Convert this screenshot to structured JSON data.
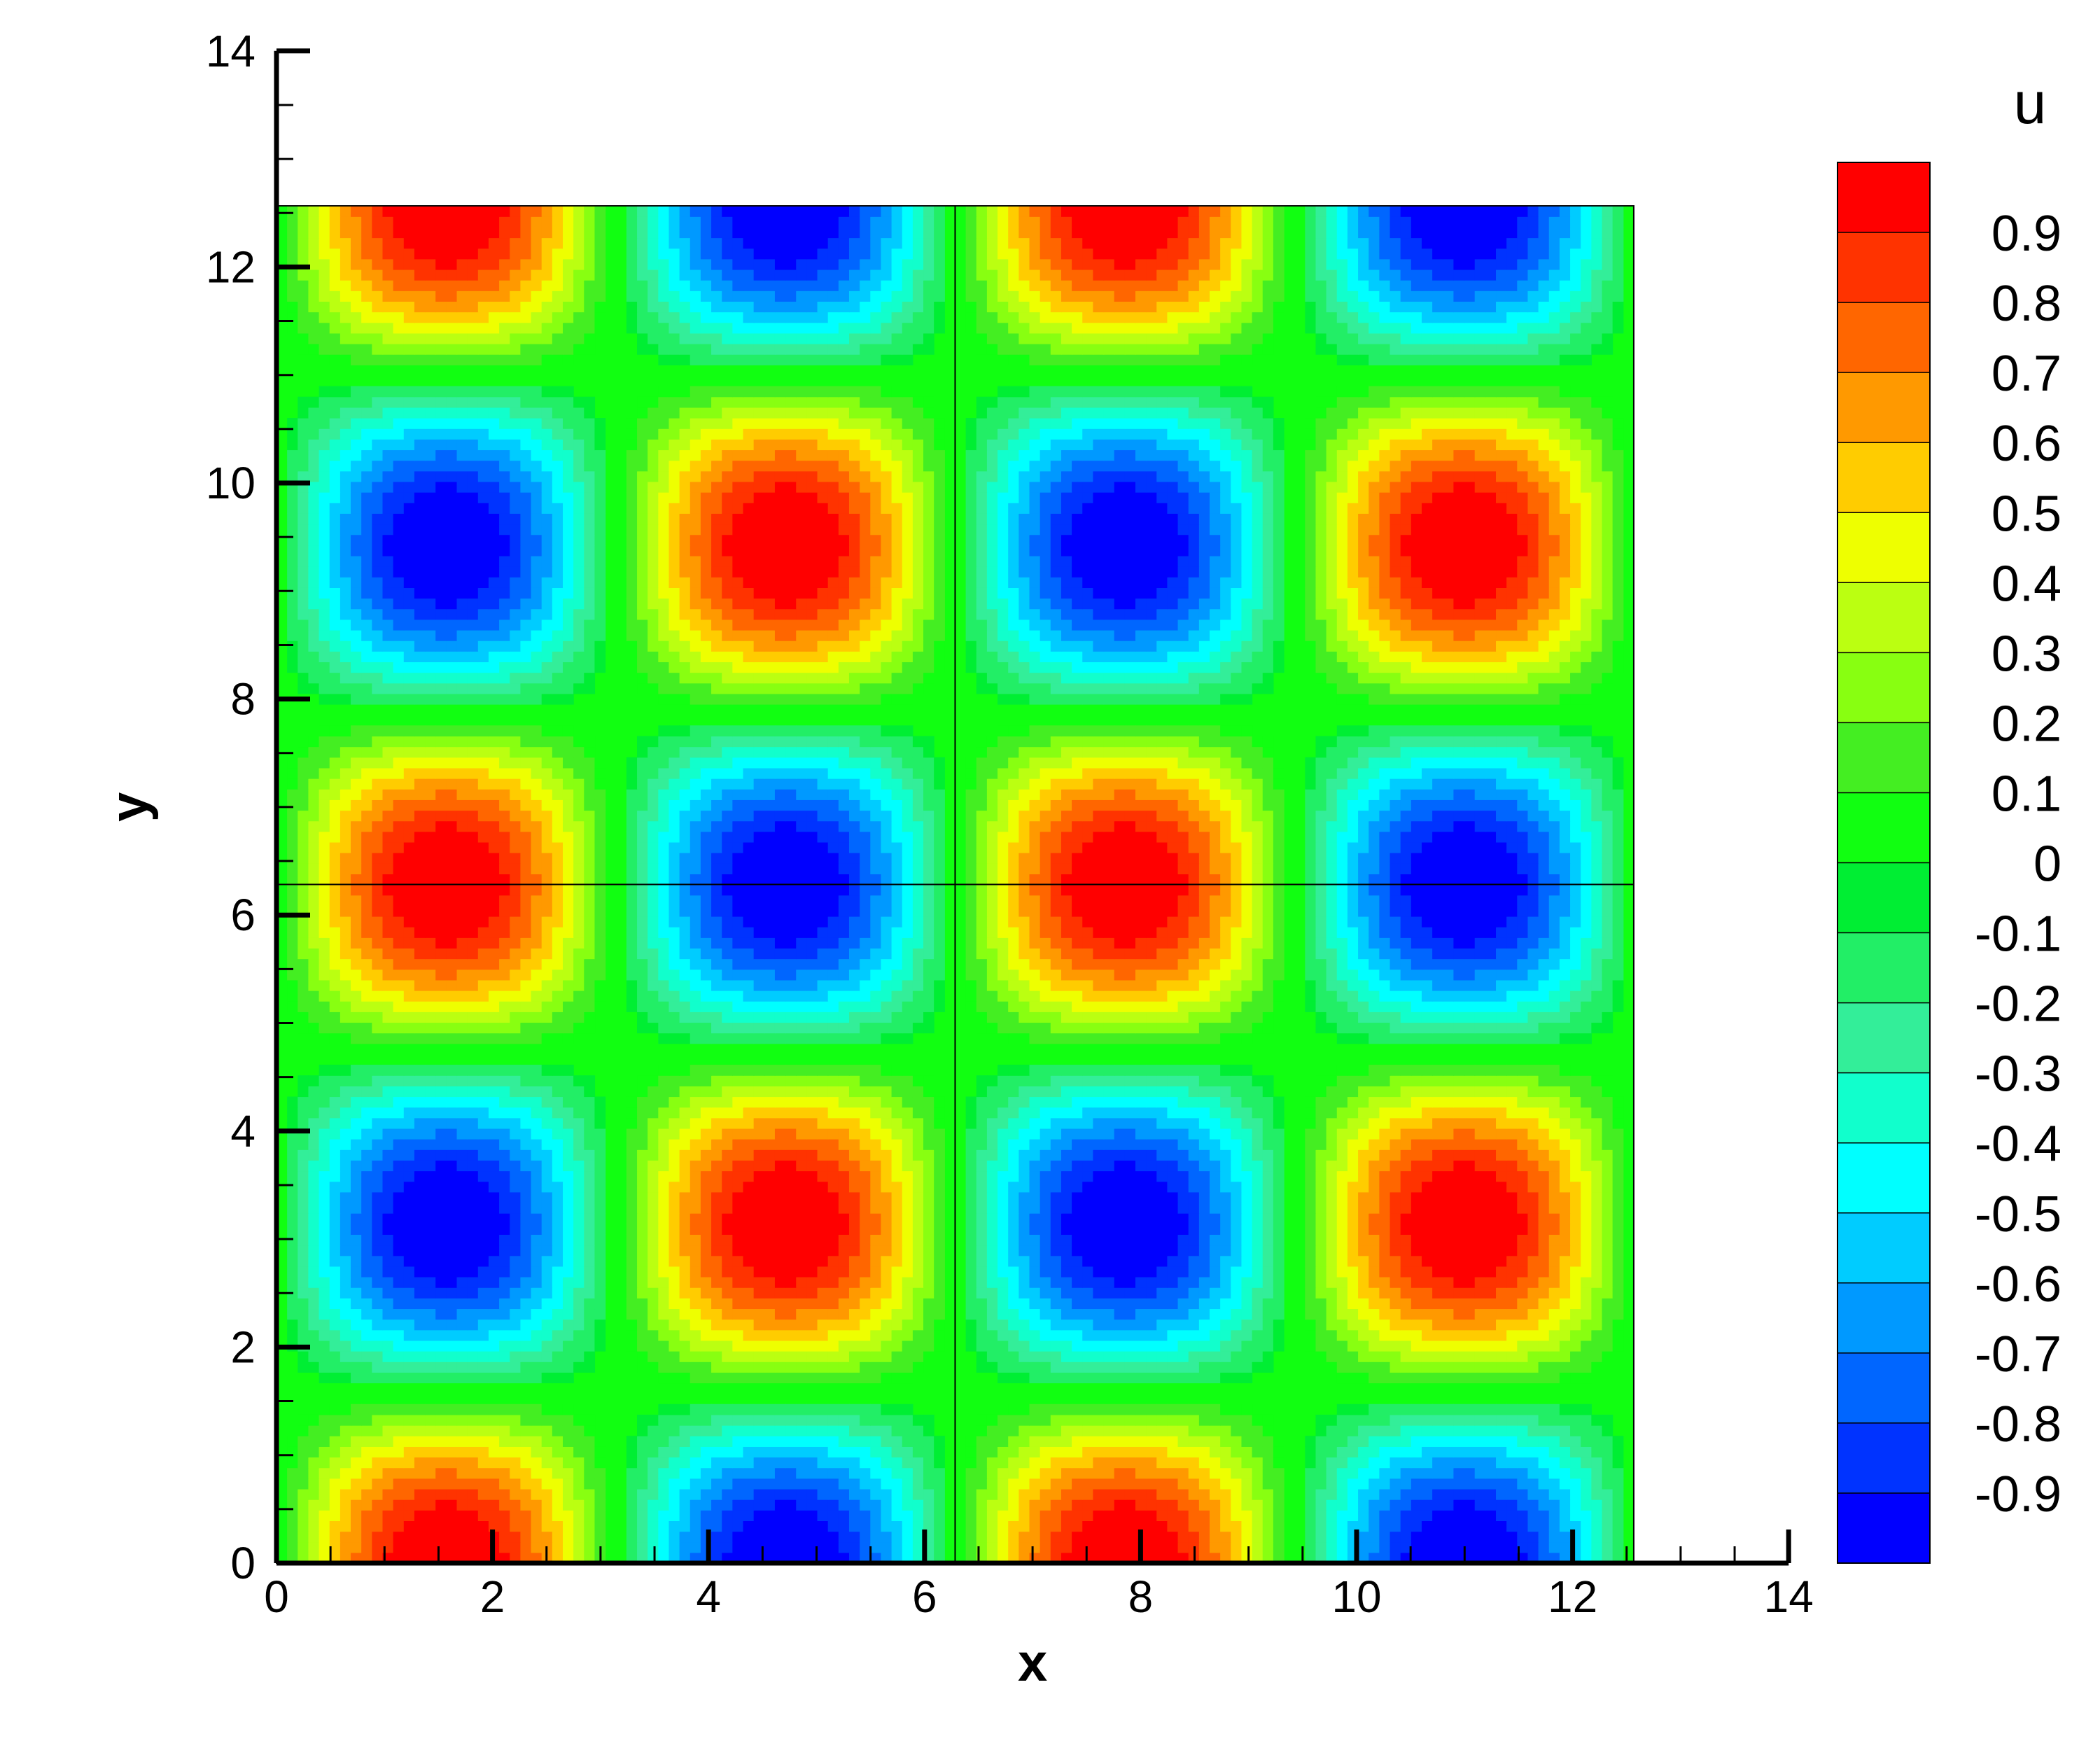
{
  "chart_data": {
    "type": "heatmap",
    "subtype": "filled-contour",
    "field": "u = sin(x) * cos(y)",
    "field_note": "",
    "domain": {
      "x": [
        0,
        12.566
      ],
      "y": [
        0,
        12.566
      ]
    },
    "xlim": [
      0,
      14
    ],
    "ylim": [
      0,
      14
    ],
    "xlabel": "x",
    "ylabel": "y",
    "x_ticks": [
      "0",
      "2",
      "4",
      "6",
      "8",
      "10",
      "12",
      "14"
    ],
    "y_ticks": [
      "0",
      "2",
      "4",
      "6",
      "8",
      "10",
      "12",
      "14"
    ],
    "x_tick_values": [
      0,
      2,
      4,
      6,
      8,
      10,
      12,
      14
    ],
    "y_tick_values": [
      0,
      2,
      4,
      6,
      8,
      10,
      12,
      14
    ],
    "block_lines": {
      "x": [
        6.283
      ],
      "y": [
        6.283
      ]
    },
    "extrema": [
      {
        "x": 1.571,
        "y": 0.0,
        "u": 1
      },
      {
        "x": 4.712,
        "y": 0.0,
        "u": -1
      },
      {
        "x": 7.854,
        "y": 0.0,
        "u": 1
      },
      {
        "x": 10.996,
        "y": 0.0,
        "u": -1
      },
      {
        "x": 1.571,
        "y": 3.142,
        "u": -1
      },
      {
        "x": 4.712,
        "y": 3.142,
        "u": 1
      },
      {
        "x": 7.854,
        "y": 3.142,
        "u": -1
      },
      {
        "x": 10.996,
        "y": 3.142,
        "u": 1
      },
      {
        "x": 1.571,
        "y": 6.283,
        "u": 1
      },
      {
        "x": 4.712,
        "y": 6.283,
        "u": -1
      },
      {
        "x": 7.854,
        "y": 6.283,
        "u": 1
      },
      {
        "x": 10.996,
        "y": 6.283,
        "u": -1
      },
      {
        "x": 1.571,
        "y": 9.425,
        "u": -1
      },
      {
        "x": 4.712,
        "y": 9.425,
        "u": 1
      },
      {
        "x": 7.854,
        "y": 9.425,
        "u": -1
      },
      {
        "x": 10.996,
        "y": 9.425,
        "u": 1
      },
      {
        "x": 1.571,
        "y": 12.566,
        "u": 1
      },
      {
        "x": 4.712,
        "y": 12.566,
        "u": -1
      },
      {
        "x": 7.854,
        "y": 12.566,
        "u": 1
      },
      {
        "x": 10.996,
        "y": 12.566,
        "u": -1
      }
    ],
    "grid": false,
    "colorbar": {
      "title": "u",
      "position": "right",
      "labels": [
        "0.9",
        "0.8",
        "0.7",
        "0.6",
        "0.5",
        "0.4",
        "0.3",
        "0.2",
        "0.1",
        "0",
        "-0.1",
        "-0.2",
        "-0.3",
        "-0.4",
        "-0.5",
        "-0.6",
        "-0.7",
        "-0.8",
        "-0.9"
      ],
      "label_values": [
        0.9,
        0.8,
        0.7,
        0.6,
        0.5,
        0.4,
        0.3,
        0.2,
        0.1,
        0,
        -0.1,
        -0.2,
        -0.3,
        -0.4,
        -0.5,
        -0.6,
        -0.7,
        -0.8,
        -0.9
      ],
      "range": [
        -0.95,
        0.95
      ],
      "colors": [
        "#ff0000",
        "#ff3300",
        "#ff6600",
        "#ff9900",
        "#ffcc00",
        "#eeff00",
        "#bbff11",
        "#88ff11",
        "#44ee22",
        "#11ff11",
        "#00ee33",
        "#22ee66",
        "#33ee99",
        "#11ffcc",
        "#00ffff",
        "#00ccff",
        "#0099ff",
        "#0066ff",
        "#0033ff",
        "#0000ff"
      ]
    }
  }
}
